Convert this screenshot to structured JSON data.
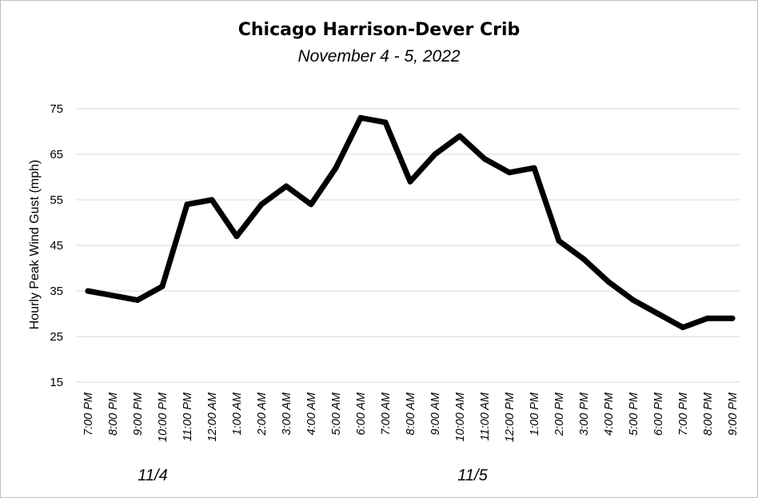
{
  "chart_data": {
    "type": "line",
    "title": "Chicago Harrison-Dever Crib",
    "subtitle": "November 4 - 5, 2022",
    "ylabel": "Hourly Peak Wind Gust (mph)",
    "xlabel": "",
    "ylim": [
      15,
      75
    ],
    "yticks": [
      "75",
      "65",
      "55",
      "45",
      "35",
      "25",
      "15"
    ],
    "grid": true,
    "categories": [
      "7:00 PM",
      "8:00 PM",
      "9:00 PM",
      "10:00 PM",
      "11:00 PM",
      "12:00 AM",
      "1:00 AM",
      "2:00 AM",
      "3:00 AM",
      "4:00 AM",
      "5:00 AM",
      "6:00 AM",
      "7:00 AM",
      "8:00 AM",
      "9:00 AM",
      "10:00 AM",
      "11:00 AM",
      "12:00 PM",
      "1:00 PM",
      "2:00 PM",
      "3:00 PM",
      "4:00 PM",
      "5:00 PM",
      "6:00 PM",
      "7:00 PM",
      "8:00 PM",
      "9:00 PM"
    ],
    "series": [
      {
        "values": [
          35,
          34,
          33,
          36,
          54,
          55,
          47,
          54,
          58,
          54,
          62,
          73,
          72,
          59,
          65,
          69,
          64,
          61,
          62,
          46,
          42,
          37,
          33,
          30,
          27,
          29,
          29
        ]
      }
    ],
    "date_labels": [
      "11/4",
      "11/5"
    ],
    "line_color": "#000000",
    "grid_color": "#d9d9d9"
  }
}
